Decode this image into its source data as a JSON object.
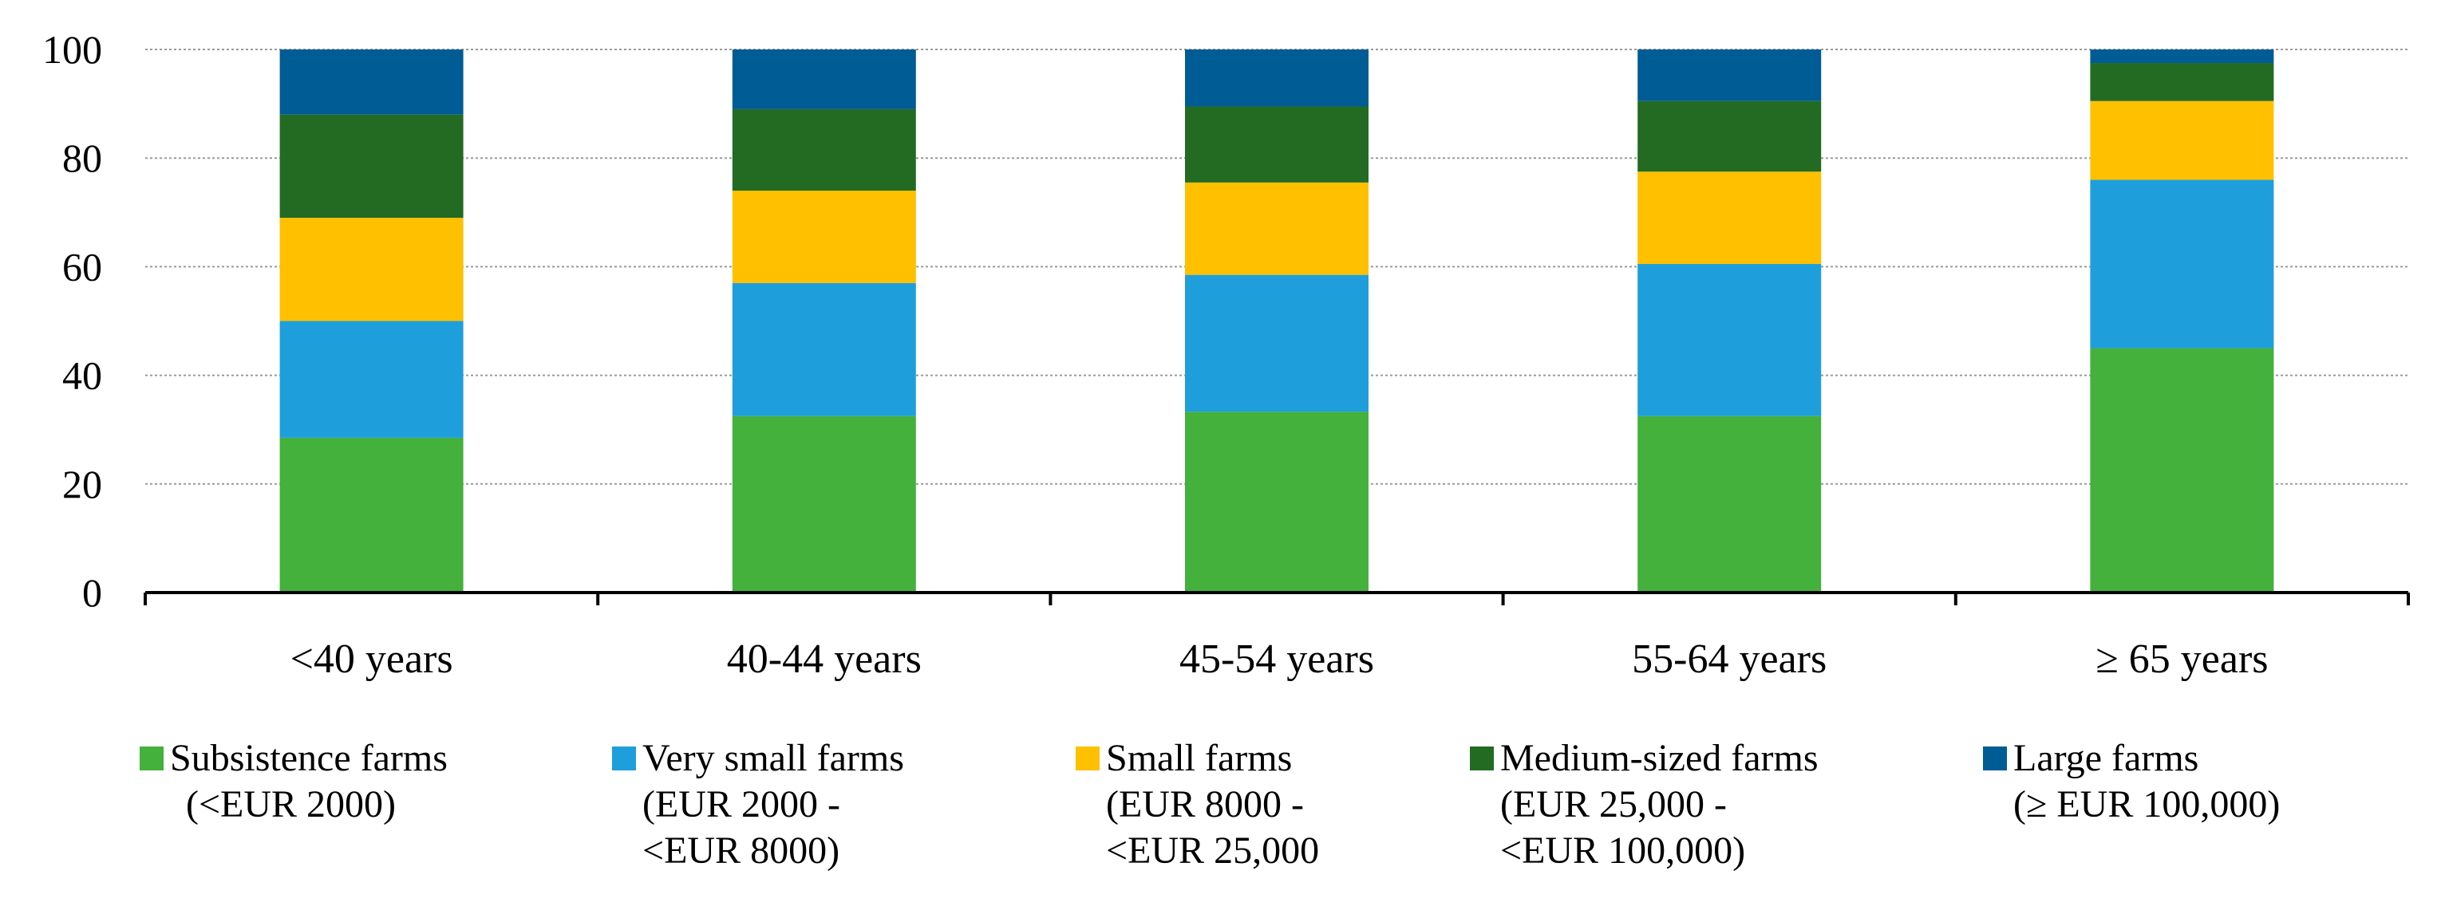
{
  "chart_data": {
    "type": "bar",
    "stacked": true,
    "title": "",
    "xlabel": "",
    "ylabel": "",
    "ylim": [
      0,
      100
    ],
    "yticks": [
      0,
      20,
      40,
      60,
      80,
      100
    ],
    "grid": true,
    "legend_position": "bottom",
    "categories": [
      "<40 years",
      "40-44 years",
      "45-54 years",
      "55-64 years",
      "≥ 65 years"
    ],
    "series": [
      {
        "name": "Subsistence farms (<EUR 2000)",
        "name_lines": [
          "Subsistence farms",
          "(<EUR 2000)"
        ],
        "color": "#43b13b",
        "values": [
          28.5,
          32.5,
          33.3,
          32.5,
          45
        ]
      },
      {
        "name": "Very small farms (EUR 2000 - <EUR 8000)",
        "name_lines": [
          "Very small farms",
          "(EUR 2000 -",
          "<EUR 8000)"
        ],
        "color": "#1e9fdb",
        "values": [
          21.5,
          24.5,
          25.2,
          28,
          31
        ]
      },
      {
        "name": "Small farms (EUR 8000 - <EUR 25,000",
        "name_lines": [
          "Small farms",
          "(EUR 8000 -",
          "<EUR 25,000"
        ],
        "color": "#ffc000",
        "values": [
          19,
          17,
          17,
          17,
          14.5
        ]
      },
      {
        "name": "Medium-sized farms (EUR 25,000 - <EUR 100,000)",
        "name_lines": [
          "Medium-sized farms",
          "(EUR 25,000 -",
          "<EUR 100,000)"
        ],
        "color": "#236b22",
        "values": [
          19,
          15,
          14,
          13,
          7
        ]
      },
      {
        "name": "Large farms (≥ EUR 100,000)",
        "name_lines": [
          "Large farms",
          "(≥ EUR 100,000)"
        ],
        "color": "#005c94",
        "values": [
          12,
          11,
          10.5,
          9.5,
          2.5
        ]
      }
    ]
  }
}
